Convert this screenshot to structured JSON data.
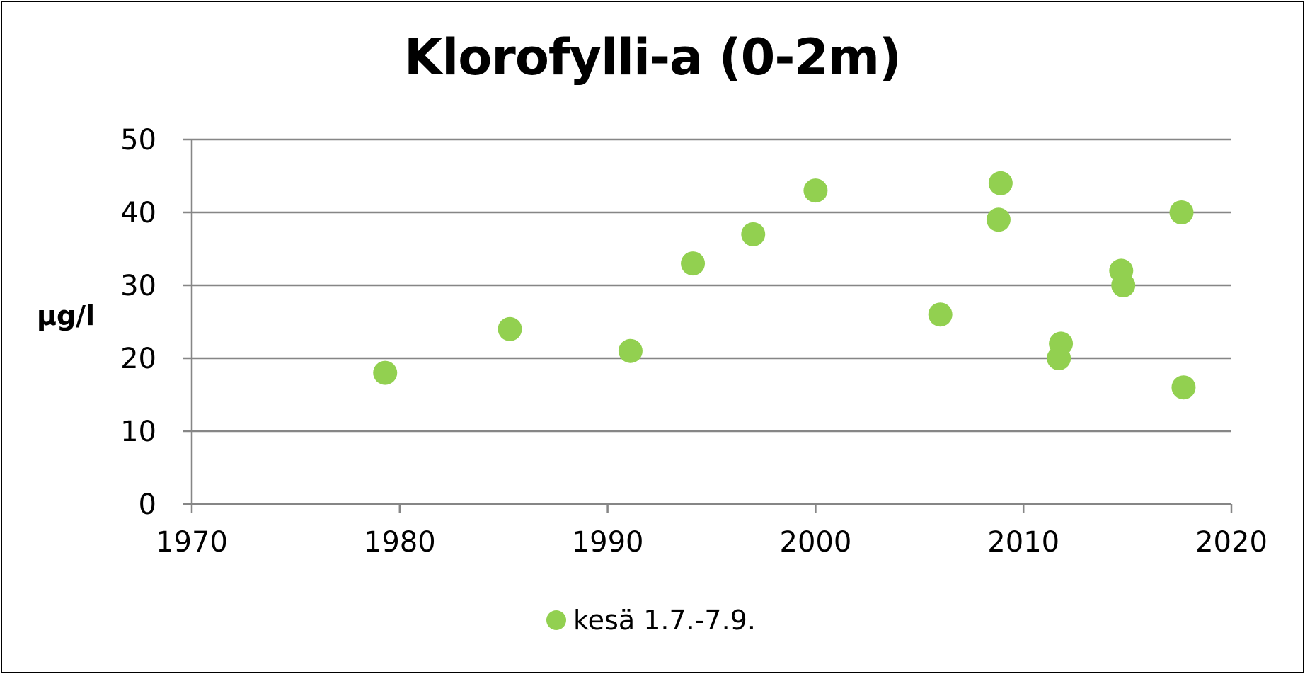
{
  "chart_data": {
    "type": "scatter",
    "title": "Klorofylli-a (0-2m)",
    "xlabel": "",
    "ylabel": "µg/l",
    "xlim": [
      1970,
      2020
    ],
    "ylim": [
      0,
      50
    ],
    "xticks": [
      1970,
      1980,
      1990,
      2000,
      2010,
      2020
    ],
    "yticks": [
      0,
      10,
      20,
      30,
      40,
      50
    ],
    "grid": "horizontal",
    "legend_position": "bottom",
    "series": [
      {
        "name": "kesä 1.7.-7.9.",
        "color": "#92d050",
        "points": [
          {
            "x": 1979.3,
            "y": 18
          },
          {
            "x": 1985.3,
            "y": 24
          },
          {
            "x": 1991.1,
            "y": 21
          },
          {
            "x": 1994.1,
            "y": 33
          },
          {
            "x": 1997.0,
            "y": 37
          },
          {
            "x": 2000.0,
            "y": 43
          },
          {
            "x": 2006.0,
            "y": 26
          },
          {
            "x": 2008.9,
            "y": 44
          },
          {
            "x": 2008.8,
            "y": 39
          },
          {
            "x": 2011.8,
            "y": 22
          },
          {
            "x": 2011.7,
            "y": 20
          },
          {
            "x": 2014.7,
            "y": 32
          },
          {
            "x": 2014.8,
            "y": 30
          },
          {
            "x": 2017.6,
            "y": 40
          },
          {
            "x": 2017.7,
            "y": 16
          }
        ]
      }
    ]
  },
  "colors": {
    "gridline": "#868686",
    "axis": "#868686",
    "marker": "#92d050"
  }
}
